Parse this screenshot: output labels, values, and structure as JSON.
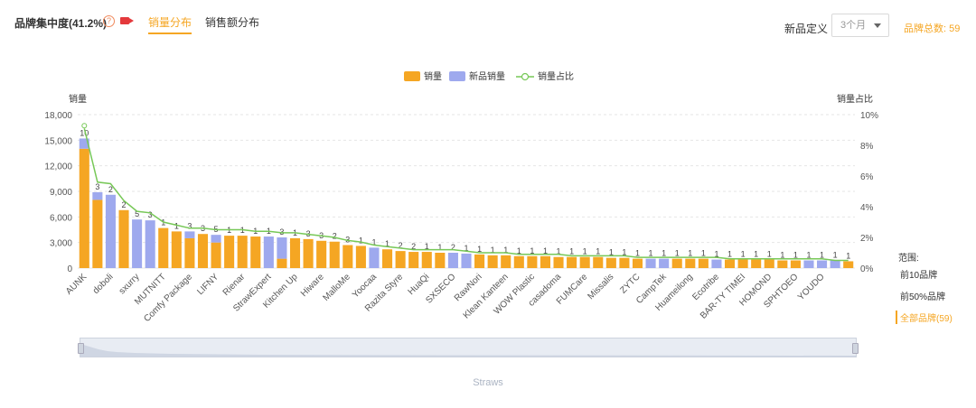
{
  "header": {
    "title": "品牌集中度(41.2%)",
    "help_glyph": "?",
    "tabs": [
      {
        "label": "销量分布",
        "active": true
      },
      {
        "label": "销售额分布",
        "active": false
      }
    ],
    "definition_label": "新品定义",
    "definition_value": "3个月",
    "brand_total": "品牌总数: 59"
  },
  "range": {
    "title": "范围:",
    "options": [
      "前10品牌",
      "前50%品牌",
      "全部品牌(59)"
    ],
    "active_index": 2
  },
  "slider": {
    "label": "Straws"
  },
  "colors": {
    "sales": "#f5a623",
    "new_sales": "#9ea9ee",
    "share_line": "#77c857",
    "accent": "#f5a623"
  },
  "chart_data": {
    "type": "bar",
    "stacked": true,
    "legend": [
      "销量",
      "新品销量",
      "销量占比"
    ],
    "legend_position": "top-center",
    "ylabel": "销量",
    "y2label": "销量占比",
    "ylim": [
      0,
      18000
    ],
    "yticks": [
      "0",
      "3,000",
      "6,000",
      "9,000",
      "12,000",
      "15,000",
      "18,000"
    ],
    "y2lim": [
      0,
      10
    ],
    "y2ticks": [
      "0%",
      "2%",
      "4%",
      "6%",
      "8%",
      "10%"
    ],
    "grid": true,
    "x_tick_labels": [
      "AUNK",
      "doboli",
      "sxurry",
      "MUTNITT",
      "Comfy Package",
      "LIFNY",
      "Rienar",
      "StrawExpert",
      "Kitchen Up",
      "Hiware",
      "MalloMe",
      "Yoocaa",
      "Razita Styre",
      "HuaQi",
      "SXSECO",
      "RawNori",
      "Klean Kanteen",
      "WOW Plastic",
      "casadoma",
      "FUMCare",
      "Missalis",
      "ZYTC",
      "CampTek",
      "Huameilong",
      "Ecotribe",
      "BAR-TY TIMEI",
      "HOMOND",
      "SPHTOEO",
      "YOUDO"
    ],
    "counts": [
      "10",
      "3",
      "2",
      "2",
      "5",
      "3",
      "1",
      "1",
      "3",
      "3",
      "5",
      "1",
      "1",
      "1",
      "1",
      "3",
      "1",
      "3",
      "3",
      "2",
      "3",
      "1",
      "1",
      "1",
      "2",
      "2",
      "1",
      "1",
      "2",
      "1",
      "1",
      "1",
      "1",
      "1",
      "1",
      "1",
      "1",
      "1",
      "1",
      "1",
      "1",
      "1",
      "1",
      "1",
      "1",
      "1",
      "1",
      "1",
      "1",
      "1",
      "1",
      "1",
      "1",
      "1",
      "1",
      "1",
      "1",
      "1",
      "1"
    ],
    "sales": [
      14000,
      8000,
      0,
      6800,
      0,
      0,
      4700,
      4300,
      3500,
      4000,
      3000,
      3800,
      3800,
      3700,
      0,
      1100,
      3500,
      3400,
      3200,
      3100,
      2700,
      2600,
      0,
      2200,
      2000,
      1900,
      1900,
      1800,
      0,
      0,
      1600,
      1500,
      1500,
      1400,
      1400,
      1400,
      1300,
      1300,
      1300,
      1300,
      1200,
      1200,
      1100,
      0,
      0,
      1100,
      1100,
      1100,
      0,
      1000,
      1000,
      1000,
      1000,
      900,
      900,
      0,
      0,
      0,
      800
    ],
    "new_sales": [
      1200,
      900,
      8600,
      0,
      5700,
      5600,
      0,
      0,
      800,
      0,
      900,
      0,
      0,
      0,
      3700,
      2500,
      0,
      0,
      0,
      0,
      0,
      0,
      2400,
      0,
      0,
      0,
      0,
      0,
      1800,
      1700,
      0,
      0,
      0,
      0,
      0,
      0,
      0,
      0,
      0,
      0,
      0,
      0,
      0,
      1100,
      1100,
      0,
      0,
      0,
      1000,
      0,
      0,
      0,
      0,
      0,
      0,
      900,
      900,
      900,
      0
    ],
    "share_pct": [
      9.1,
      5.6,
      5.5,
      4.4,
      3.7,
      3.6,
      3.0,
      2.8,
      2.6,
      2.6,
      2.5,
      2.5,
      2.5,
      2.4,
      2.4,
      2.3,
      2.3,
      2.2,
      2.1,
      2.0,
      1.8,
      1.7,
      1.5,
      1.4,
      1.3,
      1.2,
      1.2,
      1.2,
      1.2,
      1.1,
      1.0,
      1.0,
      1.0,
      0.9,
      0.9,
      0.9,
      0.9,
      0.8,
      0.8,
      0.8,
      0.8,
      0.8,
      0.7,
      0.7,
      0.7,
      0.7,
      0.7,
      0.7,
      0.7,
      0.6,
      0.6,
      0.6,
      0.6,
      0.6,
      0.6,
      0.6,
      0.6,
      0.5,
      0.5
    ]
  }
}
